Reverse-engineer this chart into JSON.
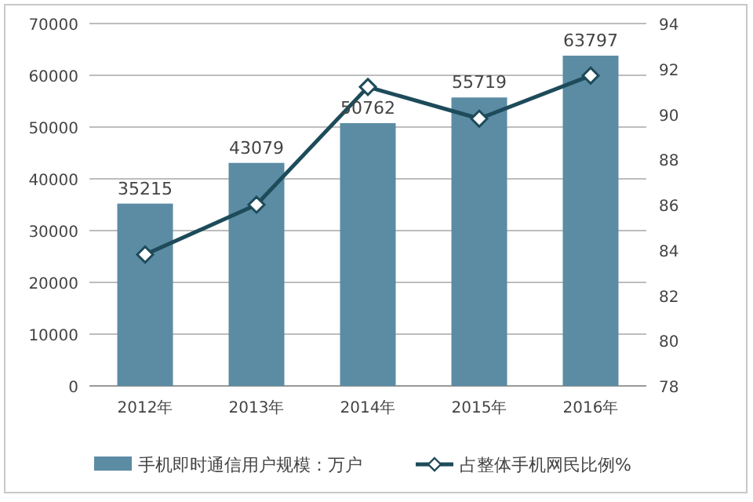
{
  "chart_data": {
    "type": "bar",
    "categories": [
      "2012年",
      "2013年",
      "2014年",
      "2015年",
      "2016年"
    ],
    "series": [
      {
        "name": "手机即时通信用户规模：万户",
        "color": "#5b8ca4",
        "values": [
          35215,
          43079,
          50762,
          55719,
          63797
        ],
        "data_labels": true
      },
      {
        "name": "占整体手机网民比例%",
        "type": "line",
        "axis": "y2",
        "color": "#1d4b5a",
        "marker": "diamond",
        "values": [
          83.8,
          86.0,
          91.2,
          89.8,
          91.7
        ]
      }
    ],
    "ylim": [
      0,
      70000
    ],
    "yticks": [
      0,
      10000,
      20000,
      30000,
      40000,
      50000,
      60000,
      70000
    ],
    "y2lim": [
      78,
      94
    ],
    "y2ticks": [
      78,
      80,
      82,
      84,
      86,
      88,
      90,
      92,
      94
    ],
    "grid": "y",
    "legend": "bottom"
  }
}
